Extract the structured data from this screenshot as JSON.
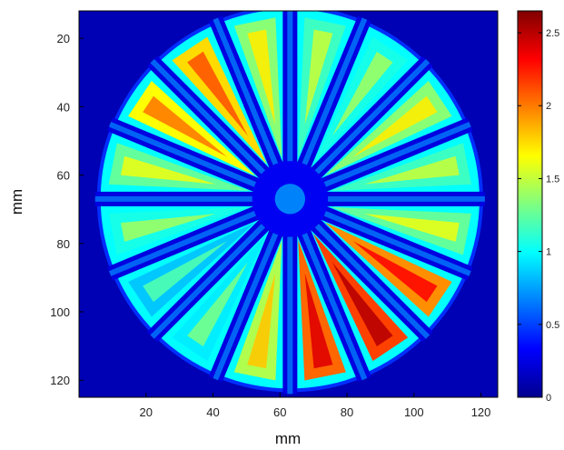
{
  "chart_data": {
    "type": "heatmap",
    "title": "",
    "xlabel": "mm",
    "ylabel": "mm",
    "x_ticks": [
      20,
      40,
      60,
      80,
      100,
      120
    ],
    "y_ticks": [
      20,
      40,
      60,
      80,
      100,
      120
    ],
    "xlim": [
      0,
      125
    ],
    "ylim": [
      125,
      12
    ],
    "colorbar": {
      "ticks": [
        0,
        0.5,
        1,
        1.5,
        2,
        2.5
      ],
      "tick_labels": [
        "0",
        "0.5",
        "1",
        "1.5",
        "2",
        "2.5"
      ],
      "range": [
        0,
        2.65
      ],
      "colormap": "jet"
    },
    "grid": false,
    "content": {
      "shape": "circular disc",
      "center_mm": [
        63,
        67
      ],
      "radius_mm": 56,
      "spokes": 16,
      "background_value": 0.1
    }
  }
}
